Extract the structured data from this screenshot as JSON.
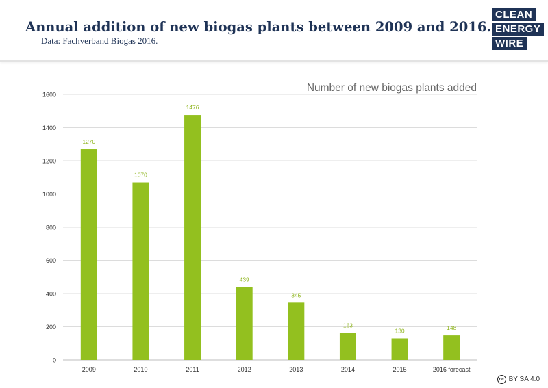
{
  "header": {
    "title": "Annual addition of new biogas plants between 2009 and 2016.",
    "subtitle": "Data: Fachverband Biogas 2016.",
    "logo_words": [
      "CLEAN",
      "ENERGY",
      "WIRE"
    ]
  },
  "license": {
    "icon": "creative-commons-icon",
    "badge": "cc",
    "text": "BY SA 4.0"
  },
  "colors": {
    "bar": "#93c01f",
    "label": "#8fb51f",
    "title": "#1f3356",
    "grid": "#dcdcdc"
  },
  "chart_data": {
    "type": "bar",
    "title": "Number of new biogas plants added",
    "categories": [
      "2009",
      "2010",
      "2011",
      "2012",
      "2013",
      "2014",
      "2015",
      "2016 forecast"
    ],
    "values": [
      1270,
      1070,
      1476,
      439,
      345,
      163,
      130,
      148
    ],
    "xlabel": "",
    "ylabel": "",
    "ylim": [
      0,
      1600
    ],
    "yticks": [
      0,
      200,
      400,
      600,
      800,
      1000,
      1200,
      1400,
      1600
    ],
    "grid": true,
    "data_labels": true
  }
}
